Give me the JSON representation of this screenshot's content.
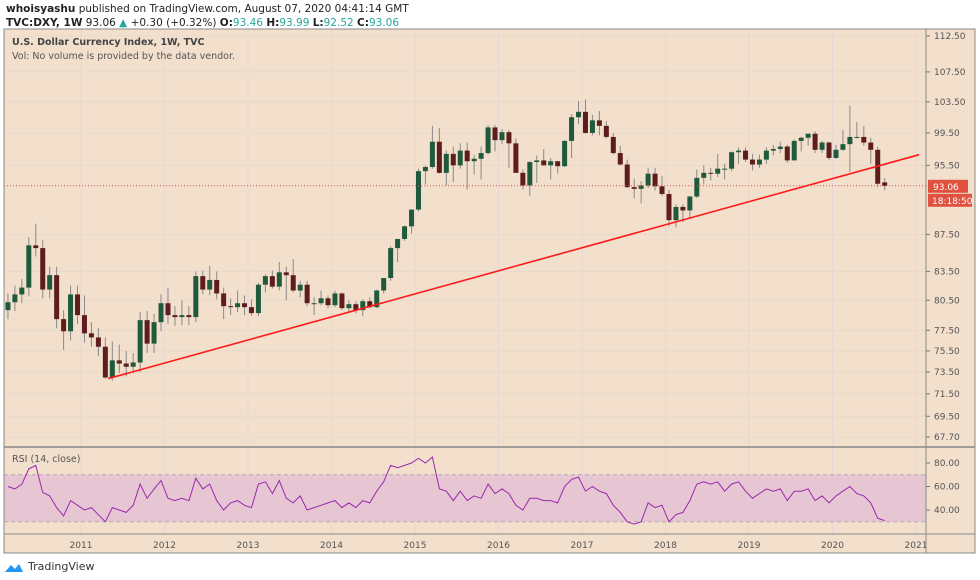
{
  "header": {
    "author": "whoisyashu",
    "published": "published on TradingView.com, August 07, 2020 04:41:14 GMT",
    "symbol": "TVC:DXY, 1W",
    "last": "93.06",
    "change": "+0.30 (+0.32%)",
    "o_label": "O:",
    "o": "93.46",
    "h_label": "H:",
    "h": "93.99",
    "l_label": "L:",
    "l": "92.52",
    "c_label": "C:",
    "c": "93.06"
  },
  "legend": {
    "title": "U.S. Dollar Currency Index, 1W, TVC",
    "vol": "Vol: No volume is provided by the data vendor.",
    "rsi": "RSI (14, close)"
  },
  "price_badge": "93.06",
  "countdown_badge": "18:18:50",
  "footer": {
    "brand": "TradingView"
  },
  "colors": {
    "background": "#f2dfcc",
    "up": "#1f5a3c",
    "down": "#5e1c1c",
    "wick": "#8a8a8a",
    "trendline": "#ff1a1a",
    "rsi": "#9c27b0",
    "rsi_band": "#e6c6d2",
    "badge": "#e0523f"
  },
  "chart_data": [
    {
      "type": "candlestick",
      "title": "U.S. Dollar Currency Index, 1W, TVC",
      "yscale": "log",
      "ylim": [
        67.7,
        112.5
      ],
      "yticks": [
        "112.50",
        "107.50",
        "103.50",
        "99.50",
        "95.50",
        "87.50",
        "83.50",
        "80.50",
        "77.50",
        "75.50",
        "73.50",
        "71.50",
        "69.50",
        "67.70"
      ],
      "xticks": [
        "2011",
        "2012",
        "2013",
        "2014",
        "2015",
        "2016",
        "2017",
        "2018",
        "2019",
        "2020",
        "2021"
      ],
      "grid": true,
      "last_price_line": 93.06,
      "trendline": [
        [
          "2011-04-29",
          72.9
        ],
        [
          "2021-01-15",
          96.8
        ]
      ],
      "columns": [
        "date",
        "open",
        "high",
        "low",
        "close"
      ],
      "rows": [
        [
          "2010-02",
          79.5,
          81.2,
          78.6,
          80.3
        ],
        [
          "2010-03",
          80.3,
          82.0,
          79.4,
          81.1
        ],
        [
          "2010-04",
          81.1,
          82.7,
          80.2,
          81.8
        ],
        [
          "2010-05",
          81.8,
          87.2,
          80.9,
          86.3
        ],
        [
          "2010-06",
          86.3,
          88.7,
          85.1,
          86.0
        ],
        [
          "2010-07",
          86.0,
          86.9,
          80.7,
          81.6
        ],
        [
          "2010-08",
          81.6,
          84.0,
          80.7,
          83.1
        ],
        [
          "2010-09",
          83.1,
          84.0,
          77.7,
          78.6
        ],
        [
          "2010-10",
          78.6,
          79.5,
          75.6,
          77.4
        ],
        [
          "2010-11",
          77.4,
          82.0,
          76.5,
          81.1
        ],
        [
          "2010-12",
          81.1,
          82.0,
          78.1,
          79.0
        ],
        [
          "2011-01",
          79.0,
          81.0,
          76.3,
          77.2
        ],
        [
          "2011-02",
          77.2,
          78.3,
          75.9,
          76.8
        ],
        [
          "2011-03",
          76.8,
          77.7,
          75.0,
          75.9
        ],
        [
          "2011-04",
          75.9,
          76.8,
          72.9,
          73.0
        ],
        [
          "2011-05",
          73.0,
          76.4,
          72.7,
          74.6
        ],
        [
          "2011-06",
          74.6,
          76.1,
          73.4,
          74.3
        ],
        [
          "2011-07",
          74.3,
          75.5,
          73.1,
          74.0
        ],
        [
          "2011-08",
          74.0,
          75.3,
          73.4,
          74.4
        ],
        [
          "2011-09",
          74.4,
          79.3,
          73.5,
          78.5
        ],
        [
          "2011-10",
          78.5,
          79.4,
          75.3,
          76.2
        ],
        [
          "2011-11",
          76.2,
          79.1,
          75.3,
          78.3
        ],
        [
          "2011-12",
          78.3,
          81.1,
          77.4,
          80.2
        ],
        [
          "2012-01",
          80.2,
          81.8,
          78.1,
          79.0
        ],
        [
          "2012-02",
          79.0,
          79.9,
          77.9,
          78.8
        ],
        [
          "2012-03",
          78.8,
          80.5,
          78.0,
          79.0
        ],
        [
          "2012-04",
          79.0,
          79.9,
          78.0,
          78.8
        ],
        [
          "2012-05",
          78.8,
          83.5,
          78.3,
          83.0
        ],
        [
          "2012-06",
          83.0,
          83.6,
          81.1,
          81.6
        ],
        [
          "2012-07",
          81.6,
          84.1,
          81.0,
          82.6
        ],
        [
          "2012-08",
          82.6,
          83.5,
          80.6,
          81.2
        ],
        [
          "2012-09",
          81.2,
          81.8,
          78.6,
          79.9
        ],
        [
          "2012-10",
          79.9,
          80.7,
          79.0,
          79.8
        ],
        [
          "2012-11",
          79.8,
          81.5,
          79.3,
          80.2
        ],
        [
          "2012-12",
          80.2,
          81.0,
          79.0,
          79.8
        ],
        [
          "2013-01",
          79.8,
          80.6,
          78.9,
          79.2
        ],
        [
          "2013-02",
          79.2,
          82.3,
          78.9,
          82.1
        ],
        [
          "2013-03",
          82.1,
          83.2,
          81.3,
          83.0
        ],
        [
          "2013-04",
          83.0,
          83.6,
          81.7,
          81.9
        ],
        [
          "2013-05",
          81.9,
          84.5,
          81.5,
          83.4
        ],
        [
          "2013-06",
          83.4,
          84.0,
          80.5,
          83.1
        ],
        [
          "2013-07",
          83.1,
          84.8,
          81.3,
          81.5
        ],
        [
          "2013-08",
          81.5,
          82.5,
          80.8,
          82.1
        ],
        [
          "2013-09",
          82.1,
          82.5,
          79.9,
          80.2
        ],
        [
          "2013-10",
          80.2,
          80.8,
          79.0,
          80.2
        ],
        [
          "2013-11",
          80.2,
          81.5,
          80.0,
          80.7
        ],
        [
          "2013-12",
          80.7,
          81.0,
          79.7,
          80.0
        ],
        [
          "2014-01",
          80.0,
          81.5,
          79.8,
          81.2
        ],
        [
          "2014-02",
          81.2,
          81.3,
          79.5,
          79.7
        ],
        [
          "2014-03",
          79.7,
          80.5,
          79.3,
          80.1
        ],
        [
          "2014-04",
          80.1,
          80.4,
          79.2,
          79.5
        ],
        [
          "2014-05",
          79.5,
          80.6,
          78.9,
          80.4
        ],
        [
          "2014-06",
          80.4,
          80.8,
          79.7,
          79.8
        ],
        [
          "2014-07",
          79.8,
          81.6,
          79.7,
          81.5
        ],
        [
          "2014-08",
          81.5,
          82.8,
          81.2,
          82.8
        ],
        [
          "2014-09",
          82.8,
          86.2,
          82.5,
          86.0
        ],
        [
          "2014-10",
          86.0,
          87.0,
          84.5,
          87.0
        ],
        [
          "2014-11",
          87.0,
          88.5,
          86.8,
          88.4
        ],
        [
          "2014-12",
          88.4,
          90.3,
          87.6,
          90.3
        ],
        [
          "2015-01",
          90.3,
          95.1,
          90.1,
          94.8
        ],
        [
          "2015-02",
          94.8,
          95.5,
          93.2,
          95.3
        ],
        [
          "2015-03",
          95.3,
          100.4,
          95.1,
          98.4
        ],
        [
          "2015-04",
          98.4,
          100.1,
          94.5,
          94.6
        ],
        [
          "2015-05",
          94.6,
          97.3,
          93.1,
          96.9
        ],
        [
          "2015-06",
          96.9,
          97.8,
          93.5,
          95.5
        ],
        [
          "2015-07",
          95.5,
          98.2,
          95.1,
          97.3
        ],
        [
          "2015-08",
          97.3,
          98.3,
          92.6,
          96.0
        ],
        [
          "2015-09",
          96.0,
          96.8,
          94.4,
          96.3
        ],
        [
          "2015-10",
          96.3,
          97.8,
          93.8,
          97.0
        ],
        [
          "2015-11",
          97.0,
          100.5,
          96.8,
          100.2
        ],
        [
          "2015-12",
          100.2,
          100.5,
          97.2,
          98.6
        ],
        [
          "2016-01",
          98.6,
          100.0,
          98.1,
          99.6
        ],
        [
          "2016-02",
          99.6,
          99.9,
          95.2,
          98.2
        ],
        [
          "2016-03",
          98.2,
          98.8,
          94.6,
          94.6
        ],
        [
          "2016-04",
          94.6,
          95.0,
          92.6,
          93.1
        ],
        [
          "2016-05",
          93.1,
          96.0,
          91.9,
          95.9
        ],
        [
          "2016-06",
          95.9,
          96.7,
          93.4,
          96.1
        ],
        [
          "2016-07",
          96.1,
          97.5,
          95.5,
          95.5
        ],
        [
          "2016-08",
          95.5,
          96.4,
          93.8,
          96.0
        ],
        [
          "2016-09",
          96.0,
          96.0,
          94.5,
          95.4
        ],
        [
          "2016-10",
          95.4,
          98.6,
          95.3,
          98.5
        ],
        [
          "2016-11",
          98.5,
          101.9,
          96.4,
          101.5
        ],
        [
          "2016-12",
          101.5,
          103.6,
          100.6,
          102.2
        ],
        [
          "2017-01",
          102.2,
          103.8,
          99.4,
          99.5
        ],
        [
          "2017-02",
          99.5,
          101.8,
          99.2,
          101.1
        ],
        [
          "2017-03",
          101.1,
          102.3,
          99.2,
          100.4
        ],
        [
          "2017-04",
          100.4,
          101.0,
          98.8,
          99.0
        ],
        [
          "2017-05",
          99.0,
          99.5,
          96.8,
          97.0
        ],
        [
          "2017-06",
          97.0,
          97.9,
          95.5,
          95.6
        ],
        [
          "2017-07",
          95.6,
          96.2,
          92.8,
          92.9
        ],
        [
          "2017-08",
          92.9,
          93.9,
          91.6,
          92.7
        ],
        [
          "2017-09",
          92.7,
          93.6,
          91.0,
          93.1
        ],
        [
          "2017-10",
          93.1,
          95.2,
          92.8,
          94.5
        ],
        [
          "2017-11",
          94.5,
          95.2,
          92.5,
          93.0
        ],
        [
          "2017-12",
          93.0,
          94.2,
          91.8,
          92.1
        ],
        [
          "2018-01",
          92.1,
          92.6,
          88.4,
          89.1
        ],
        [
          "2018-02",
          89.1,
          90.9,
          88.3,
          90.6
        ],
        [
          "2018-03",
          90.6,
          90.9,
          88.9,
          90.2
        ],
        [
          "2018-04",
          90.2,
          91.9,
          89.2,
          91.8
        ],
        [
          "2018-05",
          91.8,
          95.0,
          91.6,
          94.0
        ],
        [
          "2018-06",
          94.0,
          95.5,
          93.2,
          94.6
        ],
        [
          "2018-07",
          94.6,
          95.2,
          93.7,
          94.5
        ],
        [
          "2018-08",
          94.5,
          96.9,
          94.1,
          95.1
        ],
        [
          "2018-09",
          95.1,
          95.7,
          93.8,
          95.1
        ],
        [
          "2018-10",
          95.1,
          97.2,
          94.8,
          97.1
        ],
        [
          "2018-11",
          97.1,
          97.7,
          95.7,
          97.3
        ],
        [
          "2018-12",
          97.3,
          97.7,
          95.9,
          96.2
        ],
        [
          "2019-01",
          96.2,
          96.9,
          94.9,
          95.6
        ],
        [
          "2019-02",
          95.6,
          96.8,
          95.2,
          96.2
        ],
        [
          "2019-03",
          96.2,
          97.7,
          95.7,
          97.3
        ],
        [
          "2019-04",
          97.3,
          98.0,
          96.7,
          97.5
        ],
        [
          "2019-05",
          97.5,
          98.4,
          97.0,
          97.8
        ],
        [
          "2019-06",
          97.8,
          98.0,
          95.8,
          96.1
        ],
        [
          "2019-07",
          96.1,
          98.7,
          96.1,
          98.5
        ],
        [
          "2019-08",
          98.5,
          99.0,
          97.2,
          98.9
        ],
        [
          "2019-09",
          98.9,
          99.4,
          97.9,
          99.4
        ],
        [
          "2019-10",
          99.4,
          99.7,
          97.0,
          97.4
        ],
        [
          "2019-11",
          97.4,
          98.5,
          97.0,
          98.3
        ],
        [
          "2019-12",
          98.3,
          98.4,
          96.1,
          96.4
        ],
        [
          "2020-01",
          96.4,
          98.0,
          96.3,
          97.4
        ],
        [
          "2020-02",
          97.4,
          99.9,
          97.3,
          98.1
        ],
        [
          "2020-03",
          98.1,
          103.0,
          94.7,
          99.0
        ],
        [
          "2020-04",
          99.0,
          100.9,
          98.8,
          99.0
        ],
        [
          "2020-05",
          99.0,
          100.4,
          97.9,
          98.3
        ],
        [
          "2020-06",
          98.3,
          98.9,
          95.7,
          97.4
        ],
        [
          "2020-07",
          97.4,
          97.8,
          92.9,
          93.3
        ],
        [
          "2020-08",
          93.46,
          93.99,
          92.52,
          93.06
        ]
      ]
    },
    {
      "type": "line",
      "title": "RSI (14, close)",
      "ylim": [
        20,
        90
      ],
      "yticks": [
        "80.00",
        "60.00",
        "40.00"
      ],
      "bands": [
        30,
        70
      ],
      "x_start": "2010-02",
      "values": [
        60,
        58,
        62,
        75,
        78,
        55,
        52,
        42,
        35,
        48,
        44,
        40,
        42,
        36,
        30,
        42,
        40,
        38,
        44,
        62,
        50,
        58,
        65,
        50,
        48,
        50,
        48,
        67,
        58,
        62,
        48,
        40,
        46,
        48,
        44,
        42,
        62,
        64,
        54,
        65,
        50,
        46,
        52,
        40,
        42,
        44,
        46,
        48,
        42,
        46,
        42,
        48,
        46,
        56,
        64,
        78,
        76,
        78,
        80,
        84,
        80,
        85,
        58,
        56,
        48,
        56,
        48,
        52,
        50,
        62,
        54,
        58,
        54,
        44,
        40,
        50,
        50,
        48,
        48,
        46,
        60,
        66,
        68,
        56,
        60,
        56,
        54,
        44,
        38,
        30,
        28,
        30,
        46,
        42,
        44,
        30,
        36,
        38,
        48,
        62,
        64,
        62,
        64,
        56,
        62,
        64,
        56,
        50,
        54,
        58,
        56,
        58,
        48,
        56,
        56,
        58,
        48,
        52,
        46,
        52,
        56,
        60,
        54,
        52,
        46,
        33,
        31
      ]
    }
  ]
}
